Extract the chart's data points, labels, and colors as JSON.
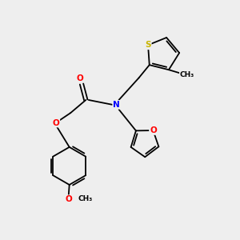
{
  "bg_color": "#eeeeee",
  "atom_colors": {
    "S": "#c8b400",
    "N": "#0000ff",
    "O": "#ff0000",
    "C": "#000000"
  },
  "bond_lw": 1.3,
  "font_size_atom": 7.5,
  "font_size_small": 6.5
}
